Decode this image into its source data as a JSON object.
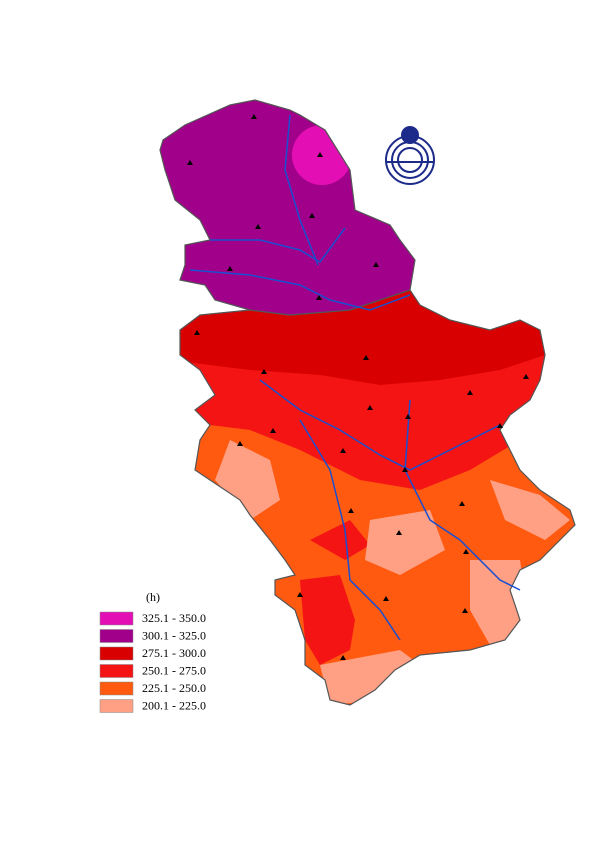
{
  "legend": {
    "title": "(h)",
    "items": [
      {
        "label": "325.1 - 350.0",
        "color": "#e30fb4"
      },
      {
        "label": "300.1 - 325.0",
        "color": "#a0008a"
      },
      {
        "label": "275.1 - 300.0",
        "color": "#d80000"
      },
      {
        "label": "250.1 - 275.0",
        "color": "#f41414"
      },
      {
        "label": "225.1 - 250.0",
        "color": "#ff5a10"
      },
      {
        "label": "200.1 - 225.0",
        "color": "#ffa084"
      }
    ]
  }
}
